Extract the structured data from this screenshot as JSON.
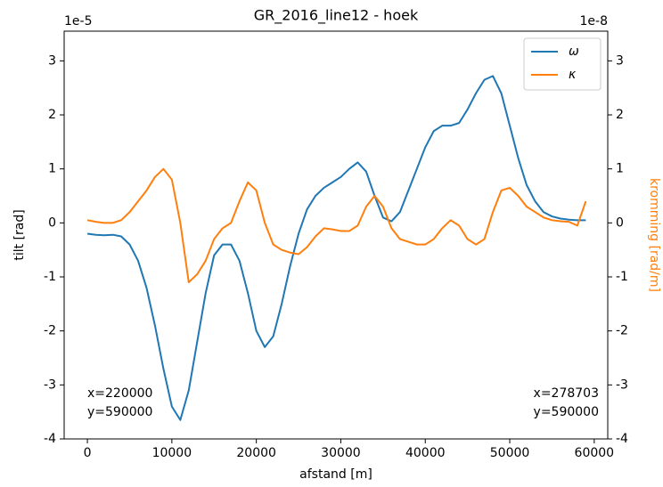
{
  "chart_data": {
    "type": "line",
    "title": "GR_2016_line12 - hoek",
    "x_label": "afstand [m]",
    "y_label": "tilt [rad]",
    "y2_label": "kromming [rad/m]",
    "y_offset": "1e-5",
    "y2_offset": "1e-8",
    "annotations": [
      [
        "x=220000",
        "y=590000"
      ],
      [
        "x=278703",
        "y=590000"
      ]
    ],
    "legend": "upper right",
    "x": [
      0,
      1000,
      2000,
      3000,
      4000,
      5000,
      6000,
      7000,
      8000,
      9000,
      10000,
      11000,
      12000,
      13000,
      14000,
      15000,
      16000,
      17000,
      18000,
      19000,
      20000,
      21000,
      22000,
      23000,
      24000,
      25000,
      26000,
      27000,
      28000,
      29000,
      30000,
      31000,
      32000,
      33000,
      34000,
      35000,
      36000,
      37000,
      38000,
      39000,
      40000,
      41000,
      42000,
      43000,
      44000,
      45000,
      46000,
      47000,
      48000,
      49000,
      50000,
      51000,
      52000,
      53000,
      54000,
      55000,
      56000,
      57000,
      58000,
      59000
    ],
    "series": [
      {
        "name": "ω",
        "color": "#1f77b4",
        "axis": "y",
        "values": [
          -0.2,
          -0.22,
          -0.23,
          -0.22,
          -0.25,
          -0.4,
          -0.7,
          -1.2,
          -1.9,
          -2.7,
          -3.4,
          -3.65,
          -3.1,
          -2.2,
          -1.3,
          -0.6,
          -0.4,
          -0.4,
          -0.7,
          -1.3,
          -2.0,
          -2.3,
          -2.1,
          -1.5,
          -0.8,
          -0.2,
          0.25,
          0.5,
          0.65,
          0.75,
          0.85,
          1.0,
          1.12,
          0.95,
          0.5,
          0.1,
          0.03,
          0.2,
          0.6,
          1.0,
          1.4,
          1.7,
          1.8,
          1.8,
          1.85,
          2.1,
          2.4,
          2.65,
          2.72,
          2.4,
          1.8,
          1.2,
          0.7,
          0.4,
          0.2,
          0.12,
          0.08,
          0.06,
          0.05,
          0.05
        ]
      },
      {
        "name": "κ",
        "color": "#ff7f0e",
        "axis": "y2",
        "values": [
          0.05,
          0.02,
          0.0,
          0.0,
          0.05,
          0.2,
          0.4,
          0.6,
          0.85,
          1.0,
          0.8,
          0.0,
          -1.1,
          -0.95,
          -0.7,
          -0.3,
          -0.1,
          0.0,
          0.4,
          0.75,
          0.6,
          0.0,
          -0.4,
          -0.5,
          -0.55,
          -0.58,
          -0.45,
          -0.25,
          -0.1,
          -0.12,
          -0.15,
          -0.15,
          -0.05,
          0.3,
          0.5,
          0.3,
          -0.1,
          -0.3,
          -0.35,
          -0.4,
          -0.4,
          -0.3,
          -0.1,
          0.05,
          -0.05,
          -0.3,
          -0.4,
          -0.3,
          0.2,
          0.6,
          0.65,
          0.5,
          0.3,
          0.2,
          0.1,
          0.05,
          0.03,
          0.02,
          -0.05,
          0.4
        ]
      }
    ],
    "xlim": [
      -2750,
      61600
    ],
    "xticks": [
      0,
      10000,
      20000,
      30000,
      40000,
      50000,
      60000
    ],
    "ylim": [
      -4,
      3.55
    ],
    "yticks": [
      -4,
      -3,
      -2,
      -1,
      0,
      1,
      2,
      3
    ],
    "y2lim": [
      -4,
      3.55
    ],
    "y2ticks": [
      -4,
      -3,
      -2,
      -1,
      0,
      1,
      2,
      3
    ]
  }
}
